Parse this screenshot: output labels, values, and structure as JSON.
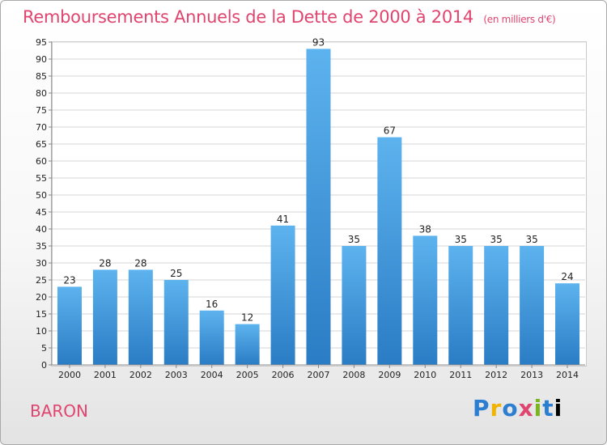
{
  "header": {
    "title": "Remboursements Annuels de la Dette de 2000 à 2014",
    "unit": "(en milliers d'€)"
  },
  "footer": {
    "location": "BARON",
    "logo_letters": [
      "P",
      "r",
      "o",
      "x",
      "i",
      "t",
      "i"
    ],
    "logo_text": "Proxiti"
  },
  "colors": {
    "title": "#e0456f",
    "bar_top": "#5db3ee",
    "bar_bottom": "#2a7cc4",
    "grid": "#d6d6d6",
    "axis_text": "#222222"
  },
  "chart_data": {
    "type": "bar",
    "title": "Remboursements Annuels de la Dette de 2000 à 2014",
    "subtitle": "(en milliers d'€)",
    "xlabel": "",
    "ylabel": "",
    "categories": [
      "2000",
      "2001",
      "2002",
      "2003",
      "2004",
      "2005",
      "2006",
      "2007",
      "2008",
      "2009",
      "2010",
      "2011",
      "2012",
      "2013",
      "2014"
    ],
    "values": [
      23,
      28,
      28,
      25,
      16,
      12,
      41,
      93,
      35,
      67,
      38,
      35,
      35,
      35,
      24
    ],
    "ylim": [
      0,
      95
    ],
    "ytick_step": 5,
    "grid": true,
    "data_labels": true
  }
}
